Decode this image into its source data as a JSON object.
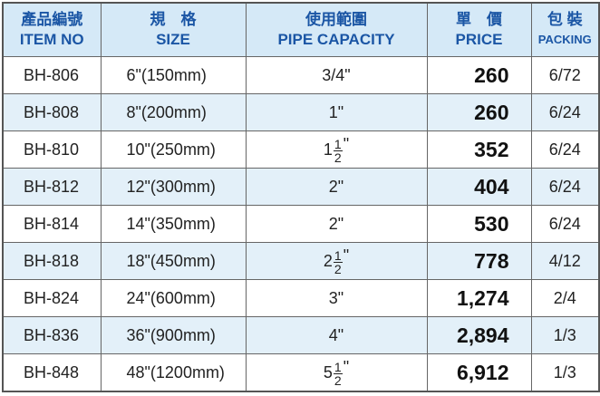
{
  "header": {
    "item": {
      "zh": "產品編號",
      "en": "ITEM NO"
    },
    "size": {
      "zh": "規　格",
      "en": "SIZE"
    },
    "pipe": {
      "zh": "使用範圍",
      "en": "PIPE CAPACITY"
    },
    "price": {
      "zh": "單　價",
      "en": "PRICE"
    },
    "packing": {
      "zh": "包 裝",
      "en": "PACKING"
    }
  },
  "table": {
    "rows": [
      [
        "BH-806",
        "6\"(150mm)",
        "3/4\"",
        "260",
        "6/72"
      ],
      [
        "BH-808",
        "8\"(200mm)",
        "1\"",
        "260",
        "6/24"
      ],
      [
        "BH-810",
        "10\"(250mm)",
        {
          "whole": "1",
          "numerator": "1",
          "denominator": "2",
          "mark": "\""
        },
        "352",
        "6/24"
      ],
      [
        "BH-812",
        "12\"(300mm)",
        "2\"",
        "404",
        "6/24"
      ],
      [
        "BH-814",
        "14\"(350mm)",
        "2\"",
        "530",
        "6/24"
      ],
      [
        "BH-818",
        "18\"(450mm)",
        {
          "whole": "2",
          "numerator": "1",
          "denominator": "2",
          "mark": "\""
        },
        "778",
        "4/12"
      ],
      [
        "BH-824",
        "24\"(600mm)",
        "3\"",
        "1,274",
        "2/4"
      ],
      [
        "BH-836",
        "36\"(900mm)",
        "4\"",
        "2,894",
        "1/3"
      ],
      [
        "BH-848",
        "48\"(1200mm)",
        {
          "whole": "5",
          "numerator": "1",
          "denominator": "2",
          "mark": "\""
        },
        "6,912",
        "1/3"
      ]
    ]
  }
}
